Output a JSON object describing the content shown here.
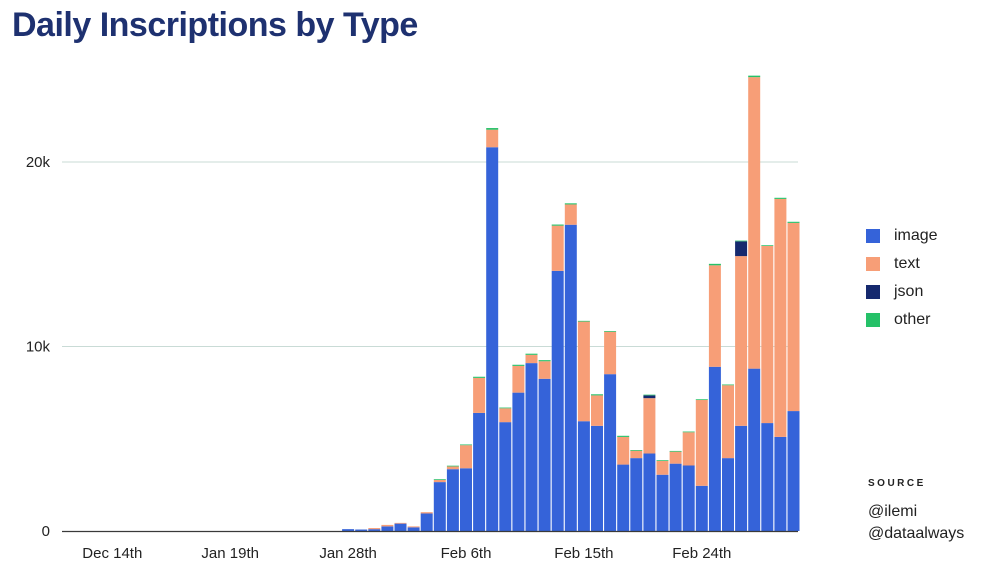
{
  "title": "Daily Inscriptions by Type",
  "legend": [
    {
      "label": "image",
      "color": "#3563d9"
    },
    {
      "label": "text",
      "color": "#f79e77"
    },
    {
      "label": "json",
      "color": "#15296e"
    },
    {
      "label": "other",
      "color": "#25c168"
    }
  ],
  "source": {
    "label": "SOURCE",
    "lines": [
      "@ilemi",
      "@dataalways"
    ]
  },
  "chart_data": {
    "type": "bar",
    "stacked": true,
    "title": "Daily Inscriptions by Type",
    "xlabel": "",
    "ylabel": "",
    "ylim": [
      0,
      25000
    ],
    "y_ticks": [
      {
        "value": 0,
        "label": "0"
      },
      {
        "value": 10000,
        "label": "10k"
      },
      {
        "value": 20000,
        "label": "20k"
      }
    ],
    "x_tick_labels": [
      {
        "index": 3,
        "label": "Dec 14th"
      },
      {
        "index": 12,
        "label": "Jan 19th"
      },
      {
        "index": 21,
        "label": "Jan 28th"
      },
      {
        "index": 30,
        "label": "Feb 6th"
      },
      {
        "index": 39,
        "label": "Feb 15th"
      },
      {
        "index": 48,
        "label": "Feb 24th"
      }
    ],
    "grid": "horizontal",
    "legend_position": "right",
    "series": [
      {
        "name": "image",
        "color": "#3563d9",
        "values": [
          0,
          0,
          0,
          0,
          0,
          0,
          0,
          0,
          0,
          0,
          0,
          0,
          0,
          0,
          0,
          0,
          0,
          0,
          0,
          0,
          0,
          100,
          80,
          100,
          250,
          400,
          200,
          950,
          2650,
          3350,
          3400,
          6400,
          20800,
          5900,
          7500,
          9100,
          8250,
          14100,
          16600,
          5950,
          5700,
          8500,
          3600,
          3950,
          4200,
          3050,
          3650,
          3550,
          2450,
          8900,
          3950,
          5700,
          8800,
          5850,
          5100,
          6500
        ]
      },
      {
        "name": "text",
        "color": "#f79e77",
        "values": [
          0,
          0,
          0,
          0,
          0,
          0,
          0,
          0,
          0,
          0,
          0,
          0,
          0,
          0,
          0,
          0,
          0,
          0,
          0,
          0,
          0,
          0,
          0,
          60,
          80,
          40,
          50,
          70,
          120,
          150,
          1250,
          1900,
          950,
          750,
          1450,
          450,
          950,
          2450,
          1100,
          5400,
          1650,
          2300,
          1500,
          400,
          3000,
          750,
          650,
          1800,
          4650,
          5500,
          3950,
          9200,
          15800,
          9600,
          12900,
          10200
        ]
      },
      {
        "name": "json",
        "color": "#15296e",
        "values": [
          0,
          0,
          0,
          0,
          0,
          0,
          0,
          0,
          0,
          0,
          0,
          0,
          0,
          0,
          0,
          0,
          0,
          0,
          0,
          0,
          0,
          0,
          0,
          0,
          0,
          0,
          0,
          0,
          0,
          0,
          0,
          0,
          0,
          0,
          0,
          0,
          0,
          0,
          0,
          0,
          0,
          0,
          0,
          0,
          150,
          0,
          0,
          0,
          0,
          0,
          0,
          800,
          0,
          0,
          0,
          0
        ]
      },
      {
        "name": "other",
        "color": "#25c168",
        "values": [
          0,
          0,
          0,
          0,
          0,
          0,
          0,
          0,
          0,
          0,
          0,
          0,
          0,
          0,
          0,
          0,
          0,
          0,
          0,
          0,
          0,
          0,
          0,
          0,
          0,
          0,
          0,
          0,
          40,
          40,
          40,
          60,
          90,
          40,
          60,
          60,
          60,
          60,
          60,
          40,
          60,
          40,
          60,
          40,
          40,
          40,
          40,
          40,
          40,
          80,
          40,
          40,
          80,
          40,
          60,
          60
        ]
      }
    ]
  }
}
